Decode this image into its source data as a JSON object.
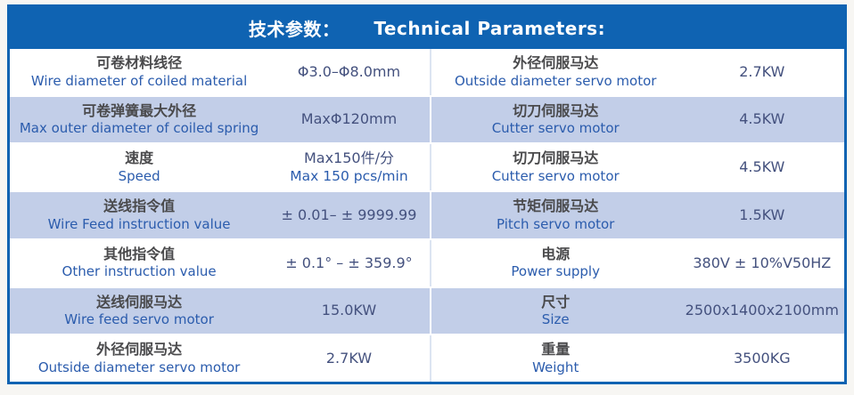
{
  "colors": {
    "header_blue": "#0f63b2",
    "alt_row_blue": "#c2cee8",
    "divider_light": "#dce4f2",
    "label_zh_color": "#4a4a4c",
    "label_en_color": "#2b5cad",
    "value_color": "#44517e",
    "page_bg": "#f7f6f3"
  },
  "header": {
    "title_zh": "技术参数：",
    "title_en": "Technical Parameters:"
  },
  "table": {
    "rows": [
      {
        "left": {
          "zh": "可卷材料线径",
          "en": "Wire diameter of coiled material",
          "value": "Φ3.0–Φ8.0mm"
        },
        "right": {
          "zh": "外径伺服马达",
          "en": "Outside diameter servo motor",
          "value": "2.7KW"
        }
      },
      {
        "left": {
          "zh": "可卷弹簧最大外径",
          "en": "Max outer diameter of coiled spring",
          "value": "MaxΦ120mm"
        },
        "right": {
          "zh": "切刀伺服马达",
          "en": "Cutter servo motor",
          "value": "4.5KW"
        }
      },
      {
        "left": {
          "zh": "速度",
          "en": "Speed",
          "value": "Max150件/分",
          "value2": "Max 150 pcs/min"
        },
        "right": {
          "zh": "切刀伺服马达",
          "en": "Cutter servo motor",
          "value": "4.5KW"
        }
      },
      {
        "left": {
          "zh": "送线指令值",
          "en": "Wire Feed instruction value",
          "value": "± 0.01– ± 9999.99"
        },
        "right": {
          "zh": "节矩伺服马达",
          "en": "Pitch servo motor",
          "value": "1.5KW"
        }
      },
      {
        "left": {
          "zh": "其他指令值",
          "en": "Other instruction value",
          "value": "± 0.1° – ± 359.9°"
        },
        "right": {
          "zh": "电源",
          "en": "Power supply",
          "value": "380V ± 10%V50HZ"
        }
      },
      {
        "left": {
          "zh": "送线伺服马达",
          "en": "Wire feed servo motor",
          "value": "15.0KW"
        },
        "right": {
          "zh": "尺寸",
          "en": "Size",
          "value": "2500x1400x2100mm"
        }
      },
      {
        "left": {
          "zh": "外径伺服马达",
          "en": "Outside diameter servo motor",
          "value": "2.7KW"
        },
        "right": {
          "zh": "重量",
          "en": "Weight",
          "value": "3500KG"
        }
      }
    ]
  }
}
